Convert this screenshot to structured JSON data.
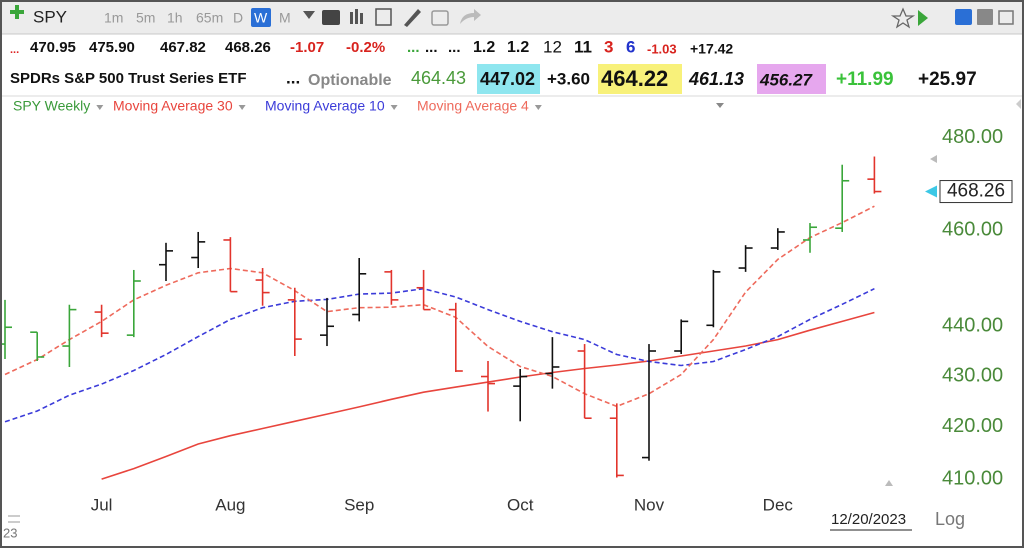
{
  "toolbar": {
    "symbol": "SPY",
    "intervals": [
      "1m",
      "5m",
      "1h",
      "65m",
      "D",
      "W",
      "M"
    ]
  },
  "quote": {
    "row1": [
      "...",
      "470.95",
      "475.90",
      "467.82",
      "468.26",
      "-1.07",
      "-0.2%",
      "...",
      "...",
      "...",
      "1.2",
      "1.2",
      "12",
      "11",
      "3",
      "6",
      "-1.03",
      "+17.42"
    ],
    "row2": [
      "SPDRs S&P 500 Trust Series ETF",
      "...",
      "Optionable",
      "464.43",
      "447.02",
      "+3.60",
      "464.22",
      "461.13",
      "456.27",
      "+11.99",
      "+25.97"
    ]
  },
  "chart_data": {
    "type": "ohlc",
    "categories": [
      null,
      null,
      null,
      "Jul",
      null,
      null,
      null,
      "Aug",
      null,
      null,
      null,
      "Sep",
      null,
      null,
      null,
      null,
      "Oct",
      null,
      null,
      null,
      "Nov",
      null,
      null,
      null,
      "Dec",
      null,
      null,
      null
    ],
    "ohlc": {
      "name": "SPY Weekly",
      "open": [
        436.4,
        438.8,
        436.0,
        442.9,
        438.2,
        452.7,
        454.2,
        457.9,
        449.5,
        445.4,
        438.2,
        442.4,
        451.2,
        447.9,
        443.4,
        429.9,
        428.0,
        430.5,
        435.0,
        421.7,
        414.1,
        435.0,
        440.2,
        452.0,
        456.2,
        457.9,
        460.4,
        470.95
      ],
      "high": [
        445.4,
        438.8,
        444.4,
        444.4,
        451.6,
        457.3,
        459.6,
        458.5,
        452.0,
        447.9,
        445.8,
        454.1,
        451.6,
        451.6,
        444.8,
        433.0,
        431.4,
        437.8,
        436.4,
        424.6,
        436.4,
        441.4,
        451.6,
        456.8,
        460.4,
        461.5,
        474.1,
        475.9
      ],
      "low": [
        433.4,
        433.0,
        431.8,
        437.8,
        437.8,
        449.3,
        452.0,
        447.1,
        444.2,
        434.0,
        436.0,
        441.0,
        444.4,
        443.4,
        430.8,
        423.0,
        421.1,
        427.5,
        421.7,
        410.3,
        413.5,
        434.4,
        439.8,
        451.2,
        455.8,
        455.2,
        459.6,
        467.82
      ],
      "close": [
        439.8,
        433.8,
        443.4,
        438.6,
        449.3,
        455.6,
        457.5,
        447.1,
        446.9,
        437.4,
        440.0,
        450.8,
        445.4,
        443.4,
        431.0,
        428.5,
        429.9,
        431.8,
        421.7,
        410.7,
        435.0,
        441.0,
        451.2,
        456.2,
        459.6,
        460.6,
        470.6,
        468.26
      ],
      "bar_colors": [
        "#3aa63a",
        "#3aa63a",
        "#3aa63a",
        "#e2342c",
        "#3aa63a",
        "#111111",
        "#111111",
        "#e2342c",
        "#e2342c",
        "#e2342c",
        "#111111",
        "#111111",
        "#e2342c",
        "#e2342c",
        "#e2342c",
        "#e2342c",
        "#111111",
        "#111111",
        "#e2342c",
        "#e2342c",
        "#111111",
        "#111111",
        "#111111",
        "#111111",
        "#111111",
        "#3aa63a",
        "#3aa63a",
        "#e2342c"
      ],
      "color": "#3a9a3a"
    },
    "series": [
      {
        "name": "Moving Average 30",
        "color": "#e8453d",
        "dashed": false,
        "values": [
          null,
          null,
          null,
          410.0,
          412.0,
          414.3,
          416.7,
          418.3,
          419.7,
          421.1,
          422.5,
          423.9,
          425.4,
          426.8,
          427.8,
          428.8,
          429.8,
          430.7,
          431.5,
          432.2,
          433.0,
          434.0,
          435.0,
          436.0,
          437.3,
          439.2,
          441.0,
          442.8
        ]
      },
      {
        "name": "Moving Average 10",
        "color": "#3b3bd9",
        "dashed": true,
        "values": [
          421.0,
          423.1,
          426.2,
          428.4,
          431.1,
          434.3,
          437.9,
          441.4,
          443.8,
          445.1,
          445.5,
          446.6,
          446.8,
          447.7,
          446.0,
          443.4,
          441.0,
          438.9,
          437.3,
          434.3,
          432.9,
          432.1,
          432.9,
          435.3,
          437.9,
          441.4,
          444.5,
          447.7
        ]
      },
      {
        "name": "Moving Average 4",
        "color": "#ee6a5c",
        "dashed": true,
        "values": [
          430.3,
          433.3,
          437.3,
          441.0,
          445.4,
          448.4,
          451.0,
          451.9,
          451.0,
          447.3,
          443.0,
          443.8,
          443.9,
          444.4,
          441.8,
          435.9,
          431.9,
          429.9,
          426.5,
          424.0,
          426.5,
          430.3,
          437.3,
          447.0,
          453.8,
          458.4,
          461.6,
          465.1
        ]
      }
    ],
    "ylim": [
      407,
      484
    ],
    "yticks": [
      {
        "value": 410,
        "label": "410.00"
      },
      {
        "value": 420,
        "label": "420.00"
      },
      {
        "value": 430,
        "label": "430.00"
      },
      {
        "value": 440,
        "label": "440.00"
      },
      {
        "value": 460,
        "label": "460.00"
      },
      {
        "value": 480,
        "label": "480.00"
      }
    ],
    "log_scale": true,
    "grid": false,
    "tick_color": "#4a8a3a",
    "date_label": "12/20/2023",
    "scale_label": "Log",
    "x_left_label": "23"
  }
}
